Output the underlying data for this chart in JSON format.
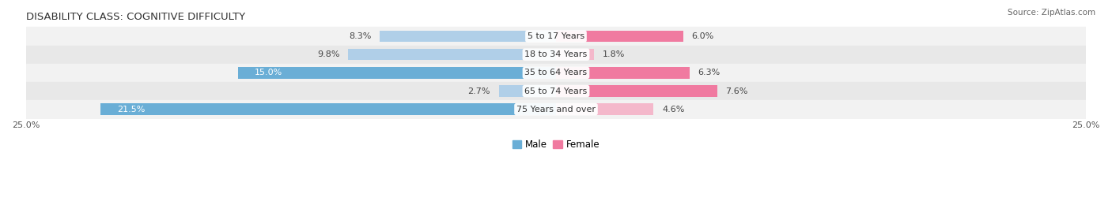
{
  "title": "DISABILITY CLASS: COGNITIVE DIFFICULTY",
  "source": "Source: ZipAtlas.com",
  "categories": [
    "5 to 17 Years",
    "18 to 34 Years",
    "35 to 64 Years",
    "65 to 74 Years",
    "75 Years and over"
  ],
  "male_values": [
    8.3,
    9.8,
    15.0,
    2.7,
    21.5
  ],
  "female_values": [
    6.0,
    1.8,
    6.3,
    7.6,
    4.6
  ],
  "max_val": 25.0,
  "male_color_strong": "#6aaed6",
  "male_color_light": "#b0cfe8",
  "female_color_strong": "#f07aa0",
  "female_color_light": "#f4b8cb",
  "row_bg_even": "#f2f2f2",
  "row_bg_odd": "#e8e8e8",
  "title_fontsize": 9.5,
  "label_fontsize": 8,
  "tick_fontsize": 8,
  "legend_fontsize": 8.5,
  "male_label_threshold": 12.0,
  "female_label_threshold": 5.5
}
